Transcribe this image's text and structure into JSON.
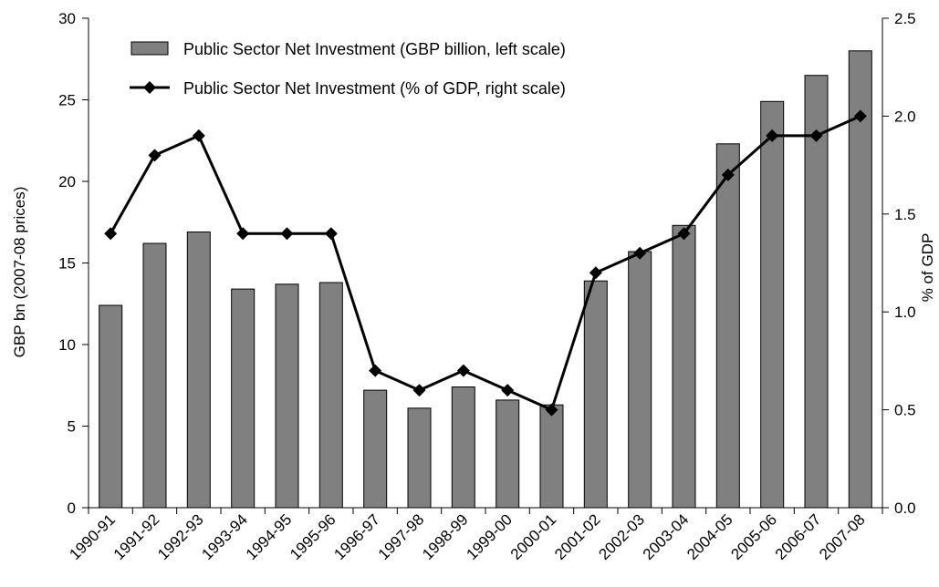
{
  "chart_data": {
    "type": "bar",
    "categories": [
      "1990-91",
      "1991-92",
      "1992-93",
      "1993-94",
      "1994-95",
      "1995-96",
      "1996-97",
      "1997-98",
      "1998-99",
      "1999-00",
      "2000-01",
      "2001-02",
      "2002-03",
      "2003-04",
      "2004-05",
      "2005-06",
      "2006-07",
      "2007-08"
    ],
    "series": [
      {
        "name": "Public Sector Net Investment (GBP billion, left scale)",
        "type": "bar",
        "axis": "left",
        "color": "#808080",
        "values": [
          12.4,
          16.2,
          16.9,
          13.4,
          13.7,
          13.8,
          7.2,
          6.1,
          7.4,
          6.6,
          6.3,
          13.9,
          15.7,
          17.3,
          22.3,
          24.9,
          26.5,
          28.0
        ]
      },
      {
        "name": "Public Sector Net Investment (% of GDP, right scale)",
        "type": "line",
        "axis": "right",
        "color": "#000000",
        "marker": "diamond",
        "values": [
          1.4,
          1.8,
          1.9,
          1.4,
          1.4,
          1.4,
          0.7,
          0.6,
          0.7,
          0.6,
          0.5,
          1.2,
          1.3,
          1.4,
          1.7,
          1.9,
          1.9,
          2.0
        ]
      }
    ],
    "ylabel": "GBP bn (2007-08 prices)",
    "y2label": "% of GDP",
    "ylim": [
      0,
      30
    ],
    "y2lim": [
      0,
      2.5
    ],
    "yticks": [
      "0",
      "5",
      "10",
      "15",
      "20",
      "25",
      "30"
    ],
    "y2ticks": [
      "0.0",
      "0.5",
      "1.0",
      "1.5",
      "2.0",
      "2.5"
    ],
    "grid": false,
    "legend_position": "top-left"
  }
}
